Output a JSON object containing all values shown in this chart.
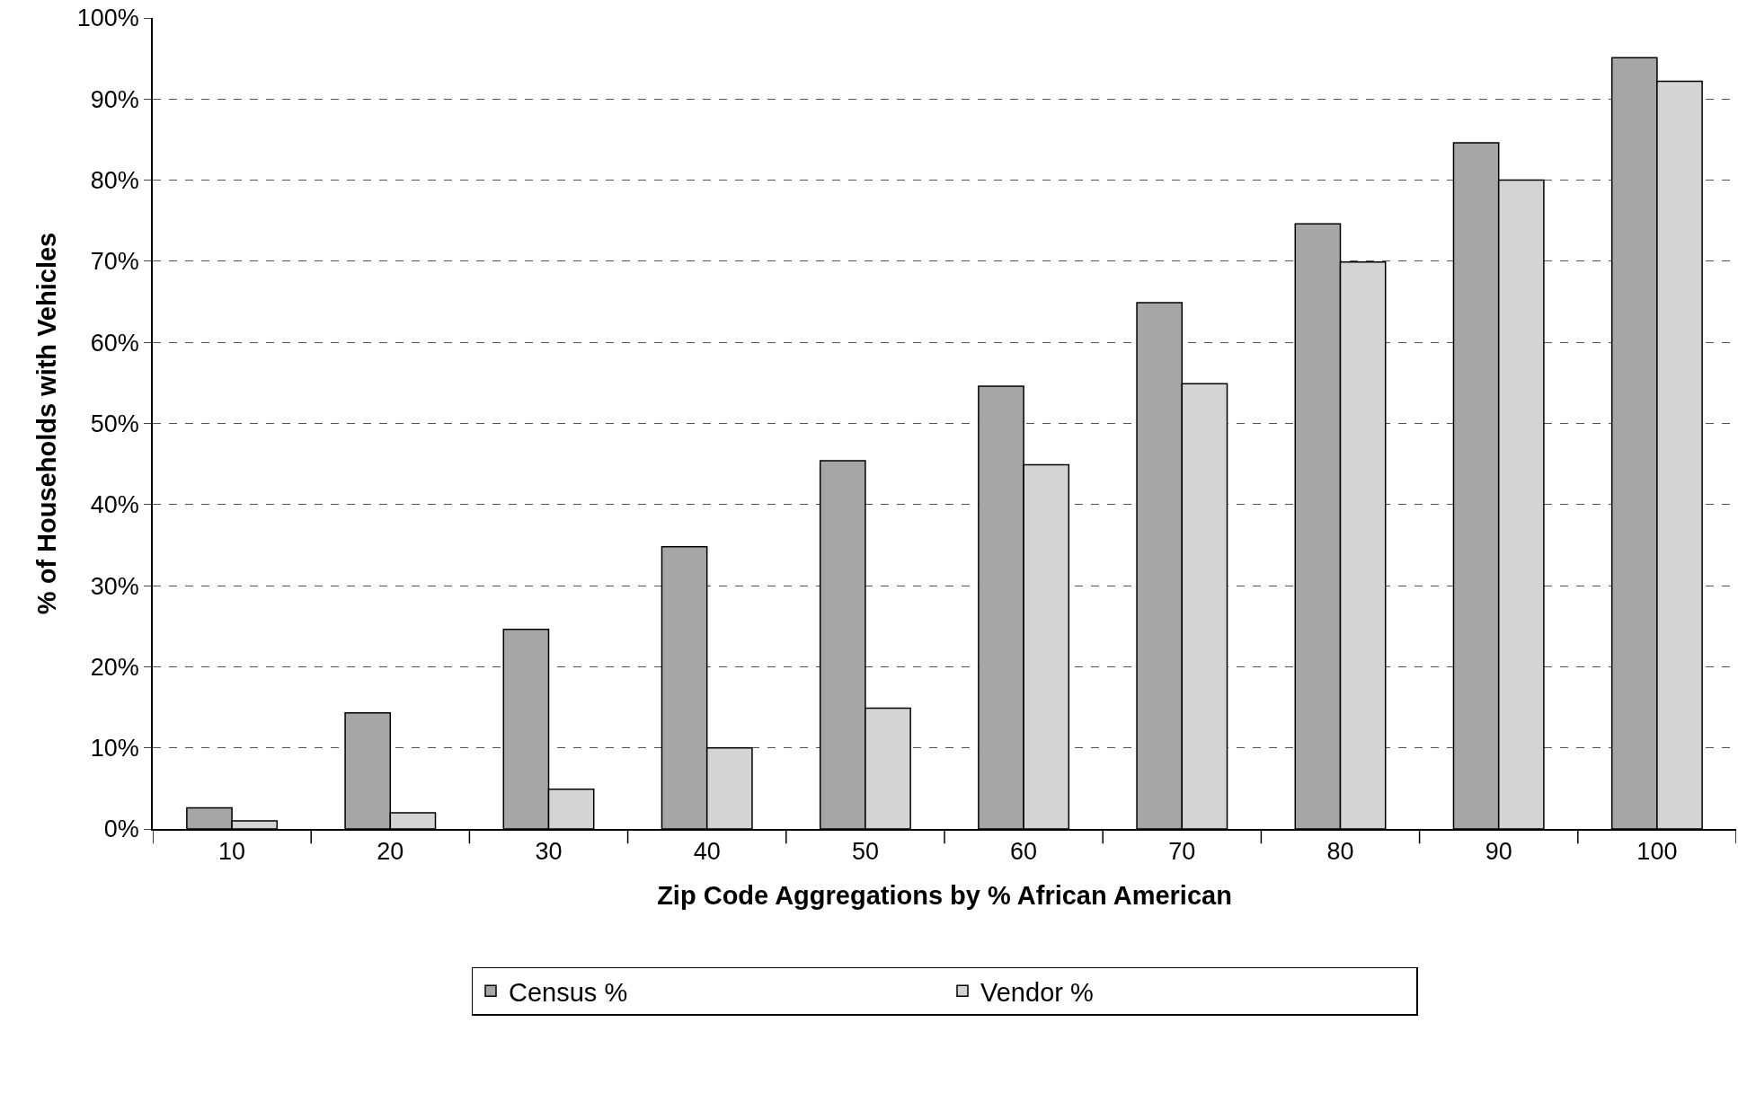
{
  "chart_data": {
    "type": "bar",
    "xlabel": "Zip Code Aggregations by % African American",
    "ylabel": "% of Households with Vehicles",
    "categories": [
      "10",
      "20",
      "30",
      "40",
      "50",
      "60",
      "70",
      "80",
      "90",
      "100"
    ],
    "series": [
      {
        "name": "Census %",
        "color": "#a6a6a6",
        "values": [
          2.6,
          14.3,
          24.6,
          34.8,
          45.4,
          54.6,
          64.9,
          74.6,
          84.6,
          95.1
        ]
      },
      {
        "name": "Vendor %",
        "color": "#d4d4d4",
        "values": [
          1.0,
          2.0,
          4.9,
          10.0,
          14.9,
          44.9,
          54.9,
          69.9,
          80.0,
          92.2
        ]
      }
    ],
    "ylim": [
      0,
      100
    ],
    "yticks": [
      {
        "value": 0,
        "label": "0%"
      },
      {
        "value": 10,
        "label": "10%"
      },
      {
        "value": 20,
        "label": "20%"
      },
      {
        "value": 30,
        "label": "30%"
      },
      {
        "value": 40,
        "label": "40%"
      },
      {
        "value": 50,
        "label": "50%"
      },
      {
        "value": 60,
        "label": "60%"
      },
      {
        "value": 70,
        "label": "70%"
      },
      {
        "value": 80,
        "label": "80%"
      },
      {
        "value": 90,
        "label": "90%"
      },
      {
        "value": 100,
        "label": "100%"
      }
    ],
    "grid": "y",
    "legend": "bottom"
  }
}
